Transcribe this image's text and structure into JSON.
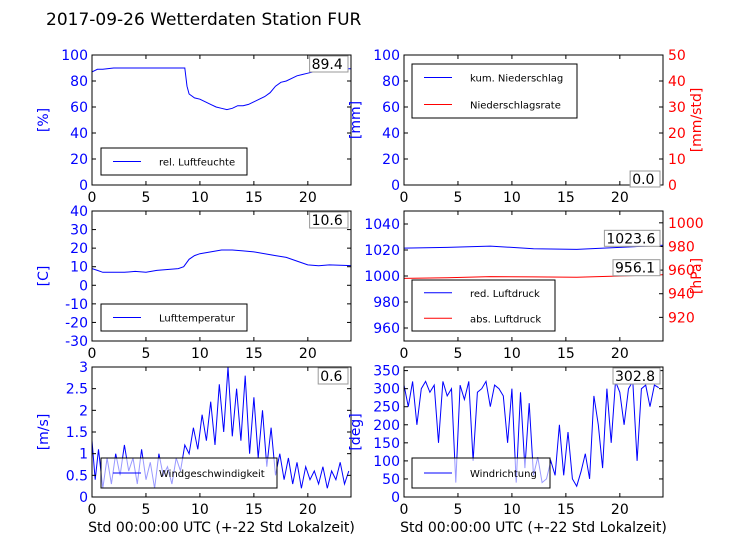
{
  "page": {
    "title": "2017-09-26 Wetterdaten Station FUR"
  },
  "colors": {
    "blue": "#0000ff",
    "red": "#ff0000",
    "black": "#000000",
    "legend_line_blue": "#0000ff"
  },
  "chart_data": [
    {
      "id": "humidity",
      "type": "line",
      "xlabel": "",
      "ylabel": "[%]",
      "ylim": [
        0,
        100
      ],
      "xlim": [
        0,
        24
      ],
      "xticks": [
        0,
        5,
        10,
        15,
        20
      ],
      "yticks": [
        0,
        20,
        40,
        60,
        80,
        100
      ],
      "current_value": "89.4",
      "legend": [
        "rel. Luftfeuchte"
      ],
      "series": [
        {
          "name": "rel. Luftfeuchte",
          "color": "#0000ff",
          "x": [
            0,
            0.5,
            1,
            2,
            3,
            4,
            5,
            6,
            7,
            8,
            8.6,
            8.8,
            9,
            9.5,
            10,
            10.5,
            11,
            11.5,
            12,
            12.5,
            13,
            13.5,
            14,
            14.5,
            15,
            15.5,
            16,
            16.5,
            17,
            17.5,
            18,
            18.5,
            19,
            19.5,
            20,
            20.5,
            21,
            21.5,
            22,
            22.5,
            23,
            23.5,
            24
          ],
          "y": [
            87,
            89,
            89,
            90,
            90,
            90,
            90,
            90,
            90,
            90,
            90,
            76,
            70,
            67,
            66,
            64,
            62,
            60,
            59,
            58,
            59,
            61,
            61,
            62,
            64,
            66,
            68,
            71,
            76,
            79,
            80,
            82,
            84,
            85,
            86,
            87,
            87,
            88,
            88,
            89,
            89,
            89.4,
            89.4
          ]
        }
      ]
    },
    {
      "id": "precipitation",
      "type": "line",
      "xlabel": "",
      "ylabel": "[mm]",
      "ylabel_right": "[mm/std]",
      "ylim": [
        0,
        100
      ],
      "ylim_right": [
        0,
        50
      ],
      "xlim": [
        0,
        24
      ],
      "xticks": [
        0,
        5,
        10,
        15,
        20
      ],
      "yticks": [
        0,
        20,
        40,
        60,
        80,
        100
      ],
      "yticks_right": [
        0,
        10,
        20,
        30,
        40,
        50
      ],
      "current_value_left": "0.0",
      "current_value_right": "0.0",
      "legend": [
        "kum. Niederschlag",
        "Niederschlagsrate"
      ],
      "series": [
        {
          "name": "kum. Niederschlag",
          "color": "#0000ff",
          "axis": "left",
          "x": [
            0,
            24
          ],
          "y": [
            0,
            0
          ]
        },
        {
          "name": "Niederschlagsrate",
          "color": "#ff0000",
          "axis": "right",
          "x": [
            0,
            24
          ],
          "y": [
            0,
            0
          ]
        }
      ]
    },
    {
      "id": "temperature",
      "type": "line",
      "xlabel": "",
      "ylabel": "[C]",
      "ylim": [
        -30,
        40
      ],
      "xlim": [
        0,
        24
      ],
      "xticks": [
        0,
        5,
        10,
        15,
        20
      ],
      "yticks": [
        -30,
        -20,
        -10,
        0,
        10,
        20,
        30,
        40
      ],
      "current_value": "10.6",
      "legend": [
        "Lufttemperatur"
      ],
      "series": [
        {
          "name": "Lufttemperatur",
          "color": "#0000ff",
          "x": [
            0,
            0.5,
            1,
            2,
            3,
            4,
            5,
            6,
            7,
            8,
            8.5,
            9,
            9.5,
            10,
            11,
            12,
            13,
            14,
            15,
            16,
            17,
            18,
            19,
            20,
            21,
            22,
            23,
            24
          ],
          "y": [
            9,
            8,
            7,
            7,
            7,
            7.5,
            7,
            8,
            8.5,
            9,
            10,
            14,
            16,
            17,
            18,
            19,
            19,
            18.5,
            18,
            17,
            16,
            15,
            13,
            11,
            10.5,
            11,
            10.8,
            10.6
          ]
        }
      ]
    },
    {
      "id": "pressure",
      "type": "line",
      "xlabel": "",
      "ylabel": "",
      "ylabel_right": "[hPa]",
      "ylim": [
        950,
        1050
      ],
      "ylim_right": [
        900,
        1010
      ],
      "xlim": [
        0,
        24
      ],
      "xticks": [
        0,
        5,
        10,
        15,
        20
      ],
      "yticks": [
        960,
        980,
        1000,
        1020,
        1040
      ],
      "yticks_right": [
        920,
        940,
        960,
        980,
        1000
      ],
      "current_value_left": "1023.6",
      "current_value_right": "956.1",
      "legend": [
        "red. Luftdruck",
        "abs. Luftdruck"
      ],
      "series": [
        {
          "name": "red. Luftdruck",
          "color": "#0000ff",
          "axis": "left",
          "x": [
            0,
            4,
            8,
            12,
            16,
            20,
            24
          ],
          "y": [
            1021.5,
            1022,
            1023,
            1021,
            1020.5,
            1022,
            1023.6
          ]
        },
        {
          "name": "abs. Luftdruck",
          "color": "#ff0000",
          "axis": "right",
          "x": [
            0,
            4,
            8,
            12,
            16,
            20,
            24
          ],
          "y": [
            953,
            953.5,
            954.5,
            954.2,
            954,
            955,
            956.1
          ]
        }
      ]
    },
    {
      "id": "windspeed",
      "type": "line",
      "xlabel": "Std 00:00:00 UTC (+-22 Std Lokalzeit)",
      "ylabel": "[m/s]",
      "ylim": [
        0,
        3
      ],
      "xlim": [
        0,
        24
      ],
      "xticks": [
        0,
        5,
        10,
        15,
        20
      ],
      "yticks": [
        0,
        0.5,
        1,
        1.5,
        2,
        2.5,
        3
      ],
      "current_value": "0.6",
      "legend": [
        "Windgeschwindigkeit"
      ],
      "series": [
        {
          "name": "Windgeschwindigkeit",
          "color": "#0000ff",
          "x": [
            0,
            0.3,
            0.6,
            1,
            1.4,
            1.8,
            2.2,
            2.6,
            3,
            3.4,
            3.8,
            4.2,
            4.6,
            5,
            5.4,
            5.8,
            6.2,
            6.6,
            7,
            7.4,
            7.8,
            8.2,
            8.6,
            9,
            9.4,
            9.8,
            10.2,
            10.6,
            11,
            11.4,
            11.8,
            12.2,
            12.6,
            13,
            13.4,
            13.8,
            14.2,
            14.6,
            15,
            15.4,
            15.8,
            16.2,
            16.6,
            17,
            17.4,
            17.8,
            18.2,
            18.6,
            19,
            19.4,
            19.8,
            20.2,
            20.6,
            21,
            21.4,
            21.8,
            22.2,
            22.6,
            23,
            23.4,
            23.8
          ],
          "y": [
            1.3,
            0.4,
            1.1,
            0.2,
            0.9,
            0.3,
            1.0,
            0.5,
            1.2,
            0.6,
            0.9,
            0.3,
            1.1,
            0.4,
            0.8,
            0.2,
            1.0,
            0.5,
            0.7,
            0.3,
            0.9,
            0.6,
            1.2,
            1.0,
            1.6,
            1.1,
            1.9,
            1.3,
            2.2,
            1.2,
            2.6,
            1.5,
            3.0,
            1.4,
            2.5,
            1.3,
            2.8,
            1.0,
            2.3,
            0.9,
            2.0,
            0.7,
            1.6,
            0.5,
            1.0,
            0.4,
            0.9,
            0.3,
            0.8,
            0.2,
            0.7,
            0.4,
            0.6,
            0.3,
            0.7,
            0.2,
            0.6,
            0.4,
            0.8,
            0.3,
            0.6
          ]
        }
      ]
    },
    {
      "id": "winddirection",
      "type": "line",
      "xlabel": "Std 00:00:00 UTC (+-22 Std Lokalzeit)",
      "ylabel": "[deg]",
      "ylim": [
        0,
        360
      ],
      "xlim": [
        0,
        24
      ],
      "xticks": [
        0,
        5,
        10,
        15,
        20
      ],
      "yticks": [
        0,
        50,
        100,
        150,
        200,
        250,
        300,
        350
      ],
      "current_value": "302.8",
      "legend": [
        "Windrichtung"
      ],
      "series": [
        {
          "name": "Windrichtung",
          "color": "#0000ff",
          "x": [
            0,
            0.4,
            0.8,
            1.2,
            1.6,
            2,
            2.4,
            2.8,
            3.2,
            3.6,
            4,
            4.4,
            4.8,
            5.2,
            5.6,
            6,
            6.4,
            6.8,
            7.2,
            7.6,
            8,
            8.4,
            8.8,
            9.2,
            9.6,
            10,
            10.4,
            10.8,
            11.2,
            11.6,
            12,
            12.4,
            12.8,
            13.2,
            13.6,
            14,
            14.4,
            14.8,
            15.2,
            15.6,
            16,
            16.4,
            16.8,
            17.2,
            17.6,
            18,
            18.4,
            18.8,
            19.2,
            19.6,
            20,
            20.4,
            20.8,
            21.2,
            21.6,
            22,
            22.4,
            22.8,
            23.2,
            23.6
          ],
          "y": [
            310,
            250,
            320,
            200,
            300,
            320,
            290,
            310,
            150,
            320,
            280,
            300,
            40,
            310,
            270,
            320,
            100,
            290,
            300,
            320,
            250,
            310,
            300,
            280,
            150,
            300,
            40,
            290,
            80,
            260,
            60,
            110,
            40,
            50,
            100,
            60,
            200,
            60,
            180,
            50,
            30,
            70,
            120,
            50,
            280,
            200,
            80,
            300,
            150,
            320,
            290,
            200,
            300,
            320,
            100,
            300,
            310,
            250,
            310,
            302.8
          ]
        }
      ]
    }
  ]
}
